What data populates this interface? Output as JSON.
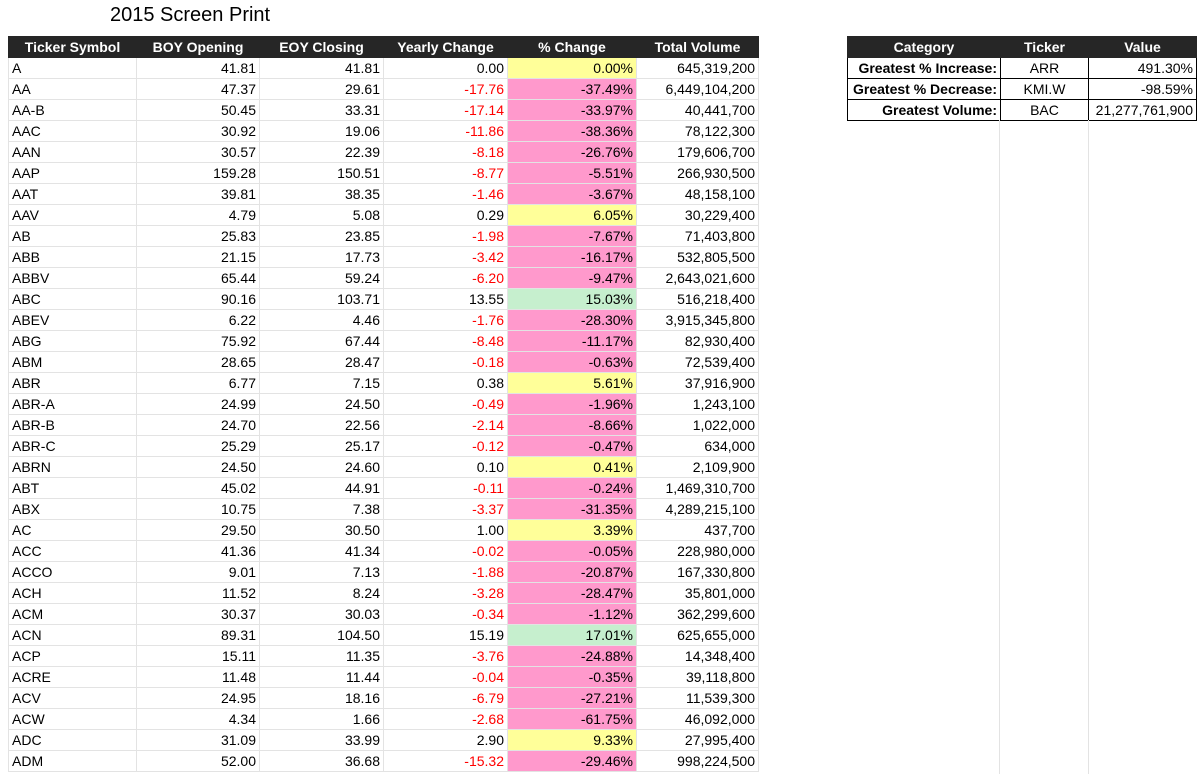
{
  "title": "2015 Screen Print",
  "main_table": {
    "headers": [
      "Ticker Symbol",
      "BOY Opening",
      "EOY Closing",
      "Yearly Change",
      "% Change",
      "Total Volume"
    ],
    "rows": [
      [
        "A",
        "41.81",
        "41.81",
        "0.00",
        "0.00%",
        "645,319,200"
      ],
      [
        "AA",
        "47.37",
        "29.61",
        "-17.76",
        "-37.49%",
        "6,449,104,200"
      ],
      [
        "AA-B",
        "50.45",
        "33.31",
        "-17.14",
        "-33.97%",
        "40,441,700"
      ],
      [
        "AAC",
        "30.92",
        "19.06",
        "-11.86",
        "-38.36%",
        "78,122,300"
      ],
      [
        "AAN",
        "30.57",
        "22.39",
        "-8.18",
        "-26.76%",
        "179,606,700"
      ],
      [
        "AAP",
        "159.28",
        "150.51",
        "-8.77",
        "-5.51%",
        "266,930,500"
      ],
      [
        "AAT",
        "39.81",
        "38.35",
        "-1.46",
        "-3.67%",
        "48,158,100"
      ],
      [
        "AAV",
        "4.79",
        "5.08",
        "0.29",
        "6.05%",
        "30,229,400"
      ],
      [
        "AB",
        "25.83",
        "23.85",
        "-1.98",
        "-7.67%",
        "71,403,800"
      ],
      [
        "ABB",
        "21.15",
        "17.73",
        "-3.42",
        "-16.17%",
        "532,805,500"
      ],
      [
        "ABBV",
        "65.44",
        "59.24",
        "-6.20",
        "-9.47%",
        "2,643,021,600"
      ],
      [
        "ABC",
        "90.16",
        "103.71",
        "13.55",
        "15.03%",
        "516,218,400"
      ],
      [
        "ABEV",
        "6.22",
        "4.46",
        "-1.76",
        "-28.30%",
        "3,915,345,800"
      ],
      [
        "ABG",
        "75.92",
        "67.44",
        "-8.48",
        "-11.17%",
        "82,930,400"
      ],
      [
        "ABM",
        "28.65",
        "28.47",
        "-0.18",
        "-0.63%",
        "72,539,400"
      ],
      [
        "ABR",
        "6.77",
        "7.15",
        "0.38",
        "5.61%",
        "37,916,900"
      ],
      [
        "ABR-A",
        "24.99",
        "24.50",
        "-0.49",
        "-1.96%",
        "1,243,100"
      ],
      [
        "ABR-B",
        "24.70",
        "22.56",
        "-2.14",
        "-8.66%",
        "1,022,000"
      ],
      [
        "ABR-C",
        "25.29",
        "25.17",
        "-0.12",
        "-0.47%",
        "634,000"
      ],
      [
        "ABRN",
        "24.50",
        "24.60",
        "0.10",
        "0.41%",
        "2,109,900"
      ],
      [
        "ABT",
        "45.02",
        "44.91",
        "-0.11",
        "-0.24%",
        "1,469,310,700"
      ],
      [
        "ABX",
        "10.75",
        "7.38",
        "-3.37",
        "-31.35%",
        "4,289,215,100"
      ],
      [
        "AC",
        "29.50",
        "30.50",
        "1.00",
        "3.39%",
        "437,700"
      ],
      [
        "ACC",
        "41.36",
        "41.34",
        "-0.02",
        "-0.05%",
        "228,980,000"
      ],
      [
        "ACCO",
        "9.01",
        "7.13",
        "-1.88",
        "-20.87%",
        "167,330,800"
      ],
      [
        "ACH",
        "11.52",
        "8.24",
        "-3.28",
        "-28.47%",
        "35,801,000"
      ],
      [
        "ACM",
        "30.37",
        "30.03",
        "-0.34",
        "-1.12%",
        "362,299,600"
      ],
      [
        "ACN",
        "89.31",
        "104.50",
        "15.19",
        "17.01%",
        "625,655,000"
      ],
      [
        "ACP",
        "15.11",
        "11.35",
        "-3.76",
        "-24.88%",
        "14,348,400"
      ],
      [
        "ACRE",
        "11.48",
        "11.44",
        "-0.04",
        "-0.35%",
        "39,118,800"
      ],
      [
        "ACV",
        "24.95",
        "18.16",
        "-6.79",
        "-27.21%",
        "11,539,300"
      ],
      [
        "ACW",
        "4.34",
        "1.66",
        "-2.68",
        "-61.75%",
        "46,092,000"
      ],
      [
        "ADC",
        "31.09",
        "33.99",
        "2.90",
        "9.33%",
        "27,995,400"
      ],
      [
        "ADM",
        "52.00",
        "36.68",
        "-15.32",
        "-29.46%",
        "998,224,500"
      ]
    ]
  },
  "summary_table": {
    "headers": [
      "Category",
      "Ticker",
      "Value"
    ],
    "rows": [
      [
        "Greatest % Increase:",
        "ARR",
        "491.30%"
      ],
      [
        "Greatest % Decrease:",
        "KMI.W",
        "-98.59%"
      ],
      [
        "Greatest Volume:",
        "BAC",
        "21,277,761,900"
      ]
    ]
  },
  "colors": {
    "header_bg": "#262626",
    "negative_text": "#ff0000",
    "pct_positive_fill": "#c6efce",
    "pct_negative_fill": "#ff99cc",
    "pct_zero_fill": "#ffff99"
  }
}
